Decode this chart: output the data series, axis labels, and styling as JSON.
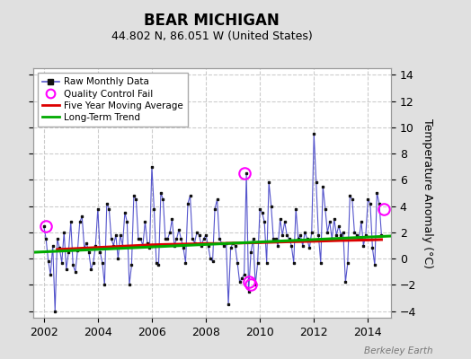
{
  "title": "BEAR MICHIGAN",
  "subtitle": "44.802 N, 86.051 W (United States)",
  "ylabel": "Temperature Anomaly (°C)",
  "watermark": "Berkeley Earth",
  "xlim": [
    2001.6,
    2014.85
  ],
  "ylim": [
    -4.5,
    14.5
  ],
  "yticks": [
    -4,
    -2,
    0,
    2,
    4,
    6,
    8,
    10,
    12,
    14
  ],
  "xticks": [
    2002,
    2004,
    2006,
    2008,
    2010,
    2012,
    2014
  ],
  "bg_color": "#e0e0e0",
  "plot_bg_color": "#ffffff",
  "grid_color": "#cccccc",
  "raw_line_color": "#5555cc",
  "raw_marker_color": "#111111",
  "ma_color": "#dd0000",
  "trend_color": "#00aa00",
  "qc_color": "#ff00ff",
  "raw_data_x": [
    2002.0,
    2002.083,
    2002.167,
    2002.25,
    2002.333,
    2002.417,
    2002.5,
    2002.583,
    2002.667,
    2002.75,
    2002.833,
    2002.917,
    2003.0,
    2003.083,
    2003.167,
    2003.25,
    2003.333,
    2003.417,
    2003.5,
    2003.583,
    2003.667,
    2003.75,
    2003.833,
    2003.917,
    2004.0,
    2004.083,
    2004.167,
    2004.25,
    2004.333,
    2004.417,
    2004.5,
    2004.583,
    2004.667,
    2004.75,
    2004.833,
    2004.917,
    2005.0,
    2005.083,
    2005.167,
    2005.25,
    2005.333,
    2005.417,
    2005.5,
    2005.583,
    2005.667,
    2005.75,
    2005.833,
    2005.917,
    2006.0,
    2006.083,
    2006.167,
    2006.25,
    2006.333,
    2006.417,
    2006.5,
    2006.583,
    2006.667,
    2006.75,
    2006.833,
    2006.917,
    2007.0,
    2007.083,
    2007.167,
    2007.25,
    2007.333,
    2007.417,
    2007.5,
    2007.583,
    2007.667,
    2007.75,
    2007.833,
    2007.917,
    2008.0,
    2008.083,
    2008.167,
    2008.25,
    2008.333,
    2008.417,
    2008.5,
    2008.583,
    2008.667,
    2008.75,
    2008.833,
    2008.917,
    2009.0,
    2009.083,
    2009.167,
    2009.25,
    2009.333,
    2009.417,
    2009.5,
    2009.583,
    2009.667,
    2009.75,
    2009.833,
    2009.917,
    2010.0,
    2010.083,
    2010.167,
    2010.25,
    2010.333,
    2010.417,
    2010.5,
    2010.583,
    2010.667,
    2010.75,
    2010.833,
    2010.917,
    2011.0,
    2011.083,
    2011.167,
    2011.25,
    2011.333,
    2011.417,
    2011.5,
    2011.583,
    2011.667,
    2011.75,
    2011.833,
    2011.917,
    2012.0,
    2012.083,
    2012.167,
    2012.25,
    2012.333,
    2012.417,
    2012.5,
    2012.583,
    2012.667,
    2012.75,
    2012.833,
    2012.917,
    2013.0,
    2013.083,
    2013.167,
    2013.25,
    2013.333,
    2013.417,
    2013.5,
    2013.583,
    2013.667,
    2013.75,
    2013.833,
    2013.917,
    2014.0,
    2014.083,
    2014.167,
    2014.25,
    2014.333,
    2014.417,
    2014.5
  ],
  "raw_data_y": [
    2.5,
    1.5,
    -0.2,
    -1.2,
    1.0,
    -4.0,
    1.5,
    0.8,
    -0.3,
    2.0,
    -0.8,
    0.5,
    2.8,
    -0.5,
    -1.0,
    0.6,
    2.8,
    3.2,
    0.8,
    1.2,
    0.5,
    -0.8,
    -0.3,
    1.0,
    3.8,
    0.5,
    -0.3,
    -2.0,
    4.2,
    3.8,
    1.5,
    1.0,
    1.8,
    0.0,
    1.8,
    1.0,
    3.5,
    2.8,
    -2.0,
    -0.5,
    4.8,
    4.5,
    1.5,
    1.5,
    1.0,
    2.8,
    1.2,
    0.8,
    7.0,
    3.8,
    -0.3,
    -0.5,
    5.0,
    4.5,
    1.5,
    1.5,
    2.0,
    3.0,
    1.0,
    1.5,
    2.2,
    1.5,
    0.8,
    -0.3,
    4.2,
    4.8,
    1.5,
    1.2,
    2.0,
    1.8,
    1.0,
    1.5,
    1.8,
    1.0,
    0.0,
    -0.2,
    3.8,
    4.5,
    1.5,
    1.2,
    1.0,
    1.2,
    -3.5,
    0.8,
    1.2,
    1.0,
    -0.3,
    -1.8,
    -1.5,
    -1.2,
    6.5,
    -2.5,
    0.5,
    1.5,
    -2.0,
    -0.3,
    3.8,
    3.5,
    2.8,
    -0.3,
    5.8,
    4.0,
    1.5,
    1.5,
    1.0,
    3.0,
    1.8,
    2.8,
    1.8,
    1.5,
    1.0,
    -0.3,
    3.8,
    1.5,
    1.8,
    1.0,
    2.0,
    1.5,
    0.8,
    2.0,
    9.5,
    5.8,
    1.8,
    -0.3,
    5.5,
    3.8,
    2.0,
    2.8,
    1.5,
    3.0,
    1.8,
    2.5,
    1.8,
    2.0,
    -1.8,
    -0.3,
    4.8,
    4.5,
    2.0,
    1.8,
    1.5,
    2.8,
    1.0,
    1.8,
    4.5,
    4.2,
    0.8,
    -0.5,
    5.0,
    4.2,
    1.8
  ],
  "qc_fails_x": [
    2002.083,
    2009.417,
    2009.583,
    2009.667,
    2014.583
  ],
  "qc_fails_y": [
    2.5,
    6.5,
    -1.8,
    -2.0,
    3.8
  ],
  "moving_avg_x": [
    2002.5,
    2003.0,
    2003.5,
    2004.0,
    2004.5,
    2005.0,
    2005.5,
    2006.0,
    2006.5,
    2007.0,
    2007.5,
    2008.0,
    2008.5,
    2009.0,
    2009.5,
    2010.0,
    2010.5,
    2011.0,
    2011.5,
    2012.0,
    2012.5,
    2013.0,
    2013.5,
    2014.0,
    2014.5
  ],
  "moving_avg_y": [
    0.7,
    0.75,
    0.8,
    0.85,
    0.9,
    0.95,
    1.0,
    1.05,
    1.08,
    1.1,
    1.12,
    1.15,
    1.15,
    1.18,
    1.2,
    1.22,
    1.25,
    1.28,
    1.3,
    1.32,
    1.35,
    1.38,
    1.4,
    1.42,
    1.45
  ],
  "trend_x": [
    2001.6,
    2014.85
  ],
  "trend_y": [
    0.48,
    1.72
  ]
}
